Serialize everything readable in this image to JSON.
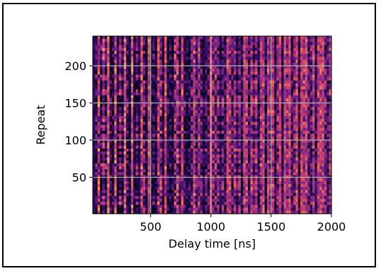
{
  "chart_data": {
    "type": "heatmap",
    "xlabel": "Delay time [ns]",
    "ylabel": "Repeat",
    "xlim": [
      20,
      2000
    ],
    "ylim": [
      1,
      240
    ],
    "x_ticks": [
      500,
      1000,
      1500,
      2000
    ],
    "y_ticks": [
      50,
      100,
      150,
      200
    ],
    "colormap": "magma",
    "grid": true,
    "n_cols": 100,
    "n_rows": 60
  }
}
